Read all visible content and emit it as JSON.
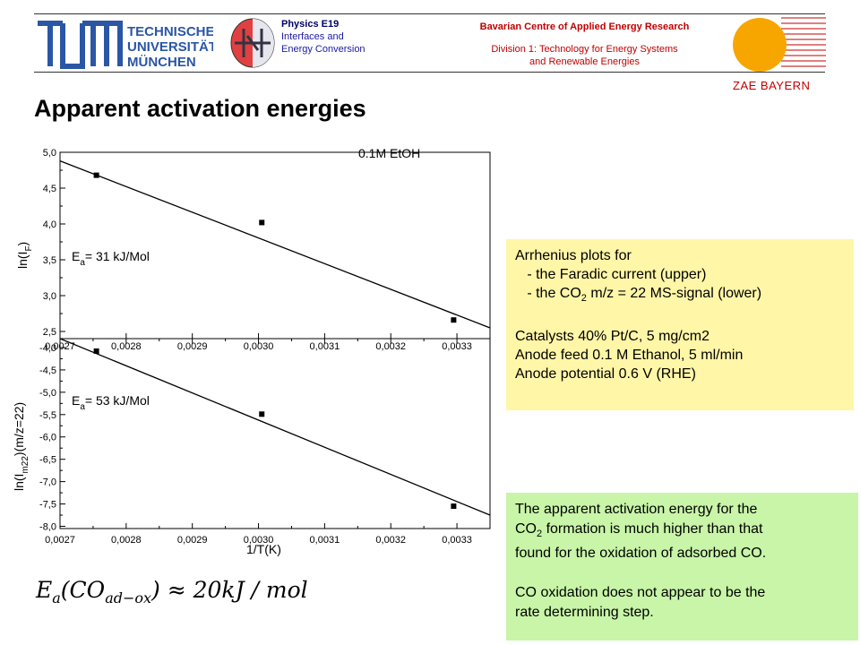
{
  "header": {
    "tum_logo_lines": [
      "TECHNISCHE",
      "UNIVERSITÄT",
      "MÜNCHEN"
    ],
    "physics_lines": [
      "Physics E19",
      "Interfaces and",
      "Energy Conversion"
    ],
    "bavarian": "Bavarian Centre of Applied Energy Research",
    "division_lines": [
      "Division 1: Technology for Energy Systems",
      "and Renewable  Energies"
    ],
    "zae": "ZAE BAYERN",
    "colors": {
      "tum_blue": "#2a56a5",
      "zae_red": "#c00000",
      "sun_orange": "#f7a600"
    }
  },
  "slide_title": "Apparent activation energies",
  "chart_data": [
    {
      "type": "scatter",
      "title": "0.1M EtOH",
      "ylabel_main": "ln(I",
      "ylabel_sub": "F",
      "ylabel_end": ")",
      "annotation_main": "E",
      "annotation_sub": "a",
      "annotation_end": "= 31 kJ/Mol",
      "xlim": [
        0.0027,
        0.00335
      ],
      "ylim": [
        2.4,
        5.0
      ],
      "yticks": [
        "2,5",
        "3,0",
        "3,5",
        "4,0",
        "4,5",
        "5,0"
      ],
      "ytick_values": [
        2.5,
        3.0,
        3.5,
        4.0,
        4.5,
        5.0
      ],
      "points": [
        [
          0.002755,
          4.68
        ],
        [
          0.003005,
          4.02
        ],
        [
          0.003295,
          2.66
        ]
      ],
      "fit_line": [
        [
          0.0027,
          4.88
        ],
        [
          0.00335,
          2.55
        ]
      ]
    },
    {
      "type": "scatter",
      "xlabel": "1/T(K)",
      "ylabel_main": "ln(I",
      "ylabel_sub": "m22",
      "ylabel_end": ")(m/z=22)",
      "annotation_main": "E",
      "annotation_sub": "a",
      "annotation_end": "= 53 kJ/Mol",
      "xlim": [
        0.0027,
        0.00335
      ],
      "ylim": [
        -8.05,
        -3.8
      ],
      "xticks": [
        "0,0027",
        "0,0028",
        "0,0029",
        "0,0030",
        "0,0031",
        "0,0032",
        "0,0033"
      ],
      "xtick_values": [
        0.0027,
        0.0028,
        0.0029,
        0.003,
        0.0031,
        0.0032,
        0.0033
      ],
      "yticks": [
        "-8,0",
        "-7,5",
        "-7,0",
        "-6,5",
        "-6,0",
        "-5,5",
        "-5,0",
        "-4,5",
        "-4,0"
      ],
      "ytick_values": [
        -8.0,
        -7.5,
        -7.0,
        -6.5,
        -6.0,
        -5.5,
        -5.0,
        -4.5,
        -4.0
      ],
      "points": [
        [
          0.002755,
          -4.08
        ],
        [
          0.003005,
          -5.49
        ],
        [
          0.003295,
          -7.55
        ]
      ],
      "fit_line": [
        [
          0.0027,
          -3.8
        ],
        [
          0.00335,
          -7.75
        ]
      ]
    }
  ],
  "info_box": {
    "line1": "Arrhenius plots for",
    "line2": "   - the Faradic current (upper)",
    "line3_pre": "   - the CO",
    "line3_sub": "2",
    "line3_post": " m/z = 22 MS-signal (lower)",
    "line4": "Catalysts 40% Pt/C, 5 mg/cm2",
    "line5": "Anode feed 0.1 M Ethanol, 5 ml/min",
    "line6": "Anode potential 0.6 V (RHE)"
  },
  "conclusion_box": {
    "line1": "The apparent activation energy for the",
    "line2_pre": "CO",
    "line2_sub": "2",
    "line2_post": " formation is much higher than that",
    "line3": "found for the oxidation of adsorbed CO.",
    "line4": "CO oxidation does not appear to be the",
    "line5": "rate determining step."
  },
  "formula": {
    "lhs": "E",
    "lhs_sub": "a",
    "paren_open": "(CO",
    "paren_sub": "ad−ox",
    "rest": ") ≈ 20kJ / mol"
  }
}
